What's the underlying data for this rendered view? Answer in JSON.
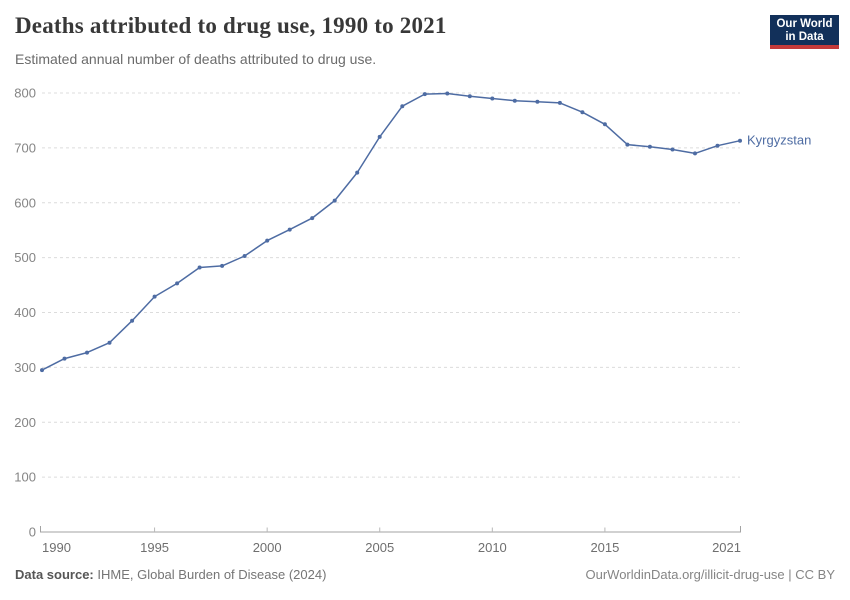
{
  "header": {
    "title": "Deaths attributed to drug use, 1990 to 2021",
    "subtitle": "Estimated annual number of deaths attributed to drug use."
  },
  "logo": {
    "line1": "Our World",
    "line2": "in Data",
    "bg_color": "#12305a",
    "accent_color": "#c43a3a",
    "text_color": "#ffffff"
  },
  "chart_data": {
    "type": "line",
    "title": "Deaths attributed to drug use, 1990 to 2021",
    "subtitle": "Estimated annual number of deaths attributed to drug use.",
    "x": [
      1990,
      1991,
      1992,
      1993,
      1994,
      1995,
      1996,
      1997,
      1998,
      1999,
      2000,
      2001,
      2002,
      2003,
      2004,
      2005,
      2006,
      2007,
      2008,
      2009,
      2010,
      2011,
      2012,
      2013,
      2014,
      2015,
      2016,
      2017,
      2018,
      2019,
      2020,
      2021
    ],
    "series": [
      {
        "name": "Kyrgyzstan",
        "color": "#4e6ca3",
        "values": [
          295,
          316,
          327,
          345,
          385,
          429,
          453,
          482,
          485,
          503,
          531,
          551,
          572,
          604,
          655,
          720,
          776,
          798,
          799,
          794,
          790,
          786,
          784,
          782,
          765,
          743,
          706,
          702,
          697,
          690,
          704,
          713
        ]
      }
    ],
    "xlabel": "",
    "ylabel": "",
    "ylim": [
      0,
      800
    ],
    "yticks": [
      0,
      100,
      200,
      300,
      400,
      500,
      600,
      700,
      800
    ],
    "xticks": [
      1990,
      1995,
      2000,
      2005,
      2010,
      2015,
      2021
    ],
    "grid": "horizontal-dashed",
    "legend_position": "end-of-line-label",
    "grid_color": "#dcdcdc",
    "axis_color": "#a3a3a3",
    "ytick_label_color": "#858585",
    "xtick_label_color": "#6f6f6f"
  },
  "footer": {
    "source_label": "Data source:",
    "source_value": "IHME, Global Burden of Disease (2024)",
    "link": "OurWorldinData.org/illicit-drug-use | CC BY"
  }
}
